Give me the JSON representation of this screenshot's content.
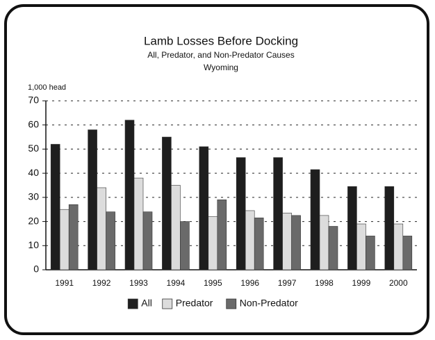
{
  "chart_data": {
    "type": "bar",
    "title": "Lamb Losses Before Docking",
    "subtitle": "All, Predator, and Non-Predator Causes",
    "subtitle2": "Wyoming",
    "y_label": "1,000 head",
    "categories": [
      "1991",
      "1992",
      "1993",
      "1994",
      "1995",
      "1996",
      "1997",
      "1998",
      "1999",
      "2000"
    ],
    "series": [
      {
        "name": "All",
        "color": "#1e1e1e",
        "values": [
          52,
          58,
          62,
          55,
          51,
          46.5,
          46.5,
          41.5,
          34.5,
          34.5
        ]
      },
      {
        "name": "Predator",
        "color": "#dcdcdc",
        "values": [
          25,
          34,
          38,
          35,
          22,
          24.5,
          23.5,
          22.5,
          19,
          19
        ]
      },
      {
        "name": "Non-Predator",
        "color": "#6a6a6a",
        "values": [
          27,
          24,
          24,
          20,
          29,
          21.5,
          22.5,
          18,
          14,
          14
        ]
      }
    ],
    "ylim": [
      0,
      70
    ],
    "yticks": [
      0,
      10,
      20,
      30,
      40,
      50,
      60,
      70
    ],
    "grid": true,
    "legend": "bottom"
  }
}
